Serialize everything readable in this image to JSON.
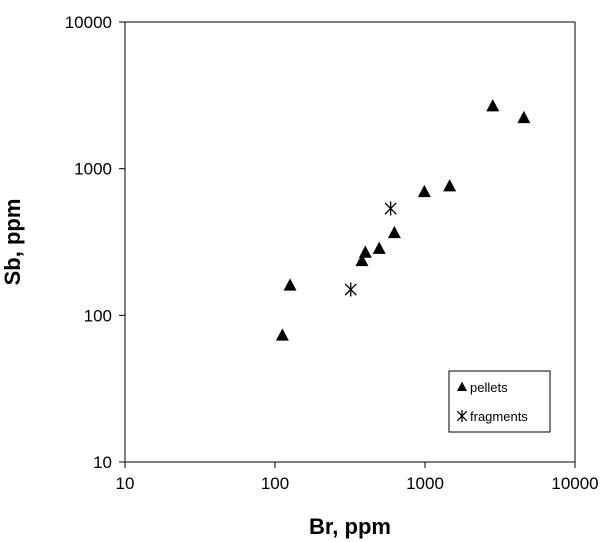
{
  "chart_data": {
    "type": "scatter",
    "xlabel": "Br, ppm",
    "ylabel": "Sb, ppm",
    "xscale": "log",
    "yscale": "log",
    "xlim": [
      10,
      10000
    ],
    "ylim": [
      10,
      10000
    ],
    "xticks": [
      "10",
      "100",
      "1000",
      "10000"
    ],
    "yticks": [
      "10",
      "100",
      "1000",
      "10000"
    ],
    "grid": false,
    "legend_position": "bottom-right",
    "series": [
      {
        "name": "pellets",
        "marker": "triangle",
        "color": "#000000",
        "points": [
          {
            "x": 112,
            "y": 73
          },
          {
            "x": 126,
            "y": 160
          },
          {
            "x": 380,
            "y": 235
          },
          {
            "x": 400,
            "y": 268
          },
          {
            "x": 495,
            "y": 285
          },
          {
            "x": 625,
            "y": 365
          },
          {
            "x": 990,
            "y": 695
          },
          {
            "x": 1460,
            "y": 760
          },
          {
            "x": 2830,
            "y": 2670
          },
          {
            "x": 4560,
            "y": 2220
          }
        ]
      },
      {
        "name": "fragments",
        "marker": "asterisk",
        "color": "#000000",
        "points": [
          {
            "x": 320,
            "y": 150
          },
          {
            "x": 590,
            "y": 535
          }
        ]
      }
    ]
  }
}
